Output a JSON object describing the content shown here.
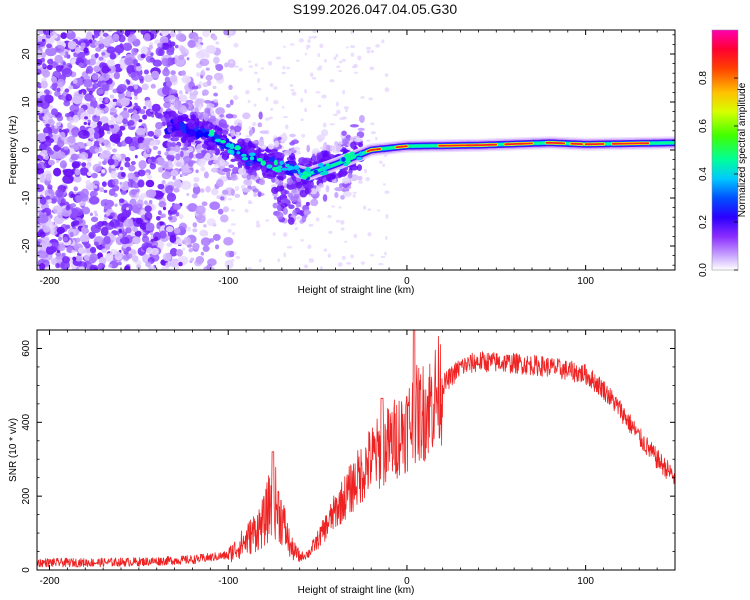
{
  "title": "S199.2026.047.04.05.G30",
  "chart_data": [
    {
      "type": "heatmap",
      "xlabel": "Height of straight line (km)",
      "ylabel": "Frequency (Hz)",
      "xlim": [
        -207,
        150
      ],
      "ylim": [
        -25,
        25
      ],
      "xticks": [
        -200,
        -100,
        0,
        100
      ],
      "yticks": [
        -20,
        -10,
        0,
        10,
        20
      ],
      "colorbar": {
        "label": "Normalized spectral amplitude",
        "ticks": [
          0.0,
          0.2,
          0.4,
          0.6,
          0.8
        ],
        "colors": [
          "#ffffff",
          "#b066ff",
          "#6600ff",
          "#0000ff",
          "#00bfff",
          "#00ff80",
          "#80ff00",
          "#ffff00",
          "#ff8000",
          "#ff0000",
          "#ff00a0"
        ]
      },
      "ridge": [
        {
          "x": -130,
          "f": 5.0
        },
        {
          "x": -110,
          "f": 3.0
        },
        {
          "x": -90,
          "f": -1.5
        },
        {
          "x": -70,
          "f": -3.5
        },
        {
          "x": -55,
          "f": -5.0
        },
        {
          "x": -40,
          "f": -3.0
        },
        {
          "x": -20,
          "f": 0.0
        },
        {
          "x": 0,
          "f": 0.8
        },
        {
          "x": 40,
          "f": 1.0
        },
        {
          "x": 80,
          "f": 1.5
        },
        {
          "x": 100,
          "f": 1.2
        },
        {
          "x": 150,
          "f": 1.5
        }
      ]
    },
    {
      "type": "line",
      "xlabel": "Height of straight line (km)",
      "ylabel": "SNR (10 * v/v)",
      "xlim": [
        -207,
        150
      ],
      "ylim": [
        0,
        650
      ],
      "xticks": [
        -200,
        -100,
        0,
        100
      ],
      "yticks": [
        0,
        200,
        400,
        600
      ],
      "series": [
        {
          "name": "SNR",
          "color": "#ee2222",
          "x": [
            -207,
            -180,
            -150,
            -120,
            -100,
            -90,
            -80,
            -75,
            -70,
            -65,
            -60,
            -55,
            -50,
            -40,
            -30,
            -20,
            -10,
            0,
            5,
            10,
            20,
            30,
            40,
            60,
            80,
            100,
            110,
            120,
            130,
            140,
            150
          ],
          "values": [
            20,
            20,
            22,
            28,
            40,
            80,
            130,
            200,
            140,
            60,
            35,
            45,
            80,
            160,
            230,
            300,
            340,
            390,
            420,
            430,
            500,
            550,
            565,
            560,
            550,
            530,
            490,
            430,
            360,
            300,
            250
          ]
        }
      ],
      "spikes": [
        {
          "x": -75,
          "y": 320
        },
        {
          "x": 4,
          "y": 650
        },
        {
          "x": -14,
          "y": 465
        }
      ]
    }
  ]
}
